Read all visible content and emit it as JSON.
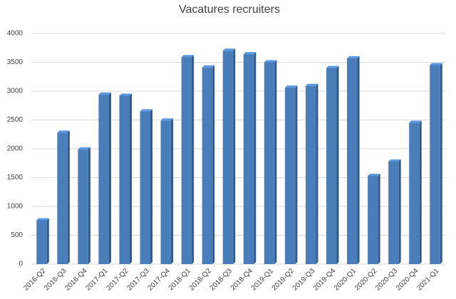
{
  "chart_data": {
    "type": "bar",
    "title": "Vacatures recruiters",
    "categories": [
      "2016-Q2",
      "2016-Q3",
      "2016-Q4",
      "2017-Q1",
      "2017-Q2",
      "2017-Q3",
      "2017-Q4",
      "2018-Q1",
      "2018-Q2",
      "2018-Q3",
      "2018-Q4",
      "2019-Q1",
      "2019-Q2",
      "2019-Q3",
      "2019-Q4",
      "2020-Q1",
      "2020-Q2",
      "2020-Q3",
      "2020-Q4",
      "2021-Q1"
    ],
    "values": [
      760,
      2280,
      1990,
      2940,
      2920,
      2650,
      2490,
      3590,
      3410,
      3700,
      3640,
      3500,
      3060,
      3090,
      3400,
      3570,
      1530,
      1780,
      2450,
      3450
    ],
    "color": "#4a7ebb",
    "ylim": [
      0,
      4000
    ],
    "yticks": [
      0,
      500,
      1000,
      1500,
      2000,
      2500,
      3000,
      3500,
      4000
    ],
    "grid": true
  }
}
